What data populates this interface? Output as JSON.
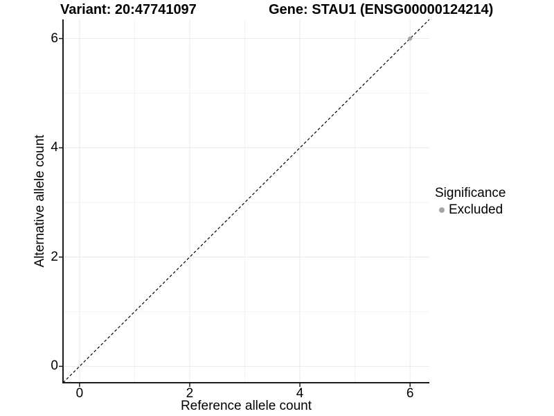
{
  "chart_data": {
    "type": "scatter",
    "title_left": "Variant: 20:47741097",
    "title_right": "Gene: STAU1 (ENSG00000124214)",
    "xlabel": "Reference allele count",
    "ylabel": "Alternative allele count",
    "xlim": [
      -0.3,
      6.35
    ],
    "ylim": [
      -0.3,
      6.35
    ],
    "x_ticks": [
      0,
      2,
      4,
      6
    ],
    "y_ticks": [
      0,
      2,
      4,
      6
    ],
    "x_minor_ticks": [
      1,
      3,
      5
    ],
    "y_minor_ticks": [
      1,
      3,
      5
    ],
    "grid": "on",
    "identity_line": {
      "slope": 1,
      "intercept": 0,
      "style": "dashed",
      "color": "#000000"
    },
    "series": [
      {
        "name": "Excluded",
        "color": "#a5a5a5",
        "points": [
          {
            "x": 6,
            "y": 6
          }
        ]
      }
    ],
    "legend": {
      "title": "Significance",
      "position": "right",
      "items": [
        {
          "label": "Excluded",
          "color": "#a5a5a5"
        }
      ]
    },
    "colors": {
      "background": "#ffffff",
      "grid_major": "#e8e8e8",
      "grid_minor": "#f2f2f2",
      "axis_line": "#1a1a1a",
      "tick": "#1a1a1a",
      "text": "#000000"
    }
  }
}
